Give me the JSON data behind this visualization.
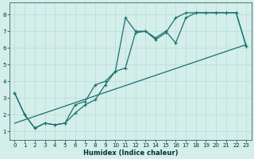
{
  "xlabel": "Humidex (Indice chaleur)",
  "ylabel": "",
  "bg_color": "#d4eeea",
  "line_color": "#1a7070",
  "grid_color": "#b8ddd8",
  "xlim": [
    -0.5,
    23.5
  ],
  "ylim": [
    0.5,
    8.7
  ],
  "xticks": [
    0,
    1,
    2,
    3,
    4,
    5,
    6,
    7,
    8,
    9,
    10,
    11,
    12,
    13,
    14,
    15,
    16,
    17,
    18,
    19,
    20,
    21,
    22,
    23
  ],
  "yticks": [
    1,
    2,
    3,
    4,
    5,
    6,
    7,
    8
  ],
  "line1_x": [
    0,
    1,
    2,
    3,
    4,
    5,
    6,
    7,
    8,
    9,
    10,
    11,
    12,
    13,
    14,
    15,
    16,
    17,
    18,
    19,
    20,
    21,
    22,
    23
  ],
  "line1_y": [
    3.3,
    2.0,
    1.2,
    1.5,
    1.4,
    1.5,
    2.1,
    2.6,
    2.9,
    3.8,
    4.6,
    7.8,
    7.0,
    7.0,
    6.5,
    6.9,
    7.8,
    8.1,
    8.1,
    8.1,
    8.1,
    8.1,
    8.1,
    6.1
  ],
  "line2_x": [
    0,
    1,
    2,
    3,
    4,
    5,
    6,
    7,
    8,
    9,
    10,
    11,
    12,
    13,
    14,
    15,
    16,
    17,
    18,
    19,
    20,
    21,
    22,
    23
  ],
  "line2_y": [
    3.3,
    2.0,
    1.2,
    1.5,
    1.4,
    1.5,
    2.6,
    2.8,
    3.8,
    4.0,
    4.6,
    4.8,
    6.9,
    7.0,
    6.6,
    7.0,
    6.3,
    7.8,
    8.1,
    8.1,
    8.1,
    8.1,
    8.1,
    6.1
  ],
  "line3_x": [
    0,
    23
  ],
  "line3_y": [
    1.5,
    6.2
  ],
  "marker_size": 2.5,
  "line_width": 0.9
}
